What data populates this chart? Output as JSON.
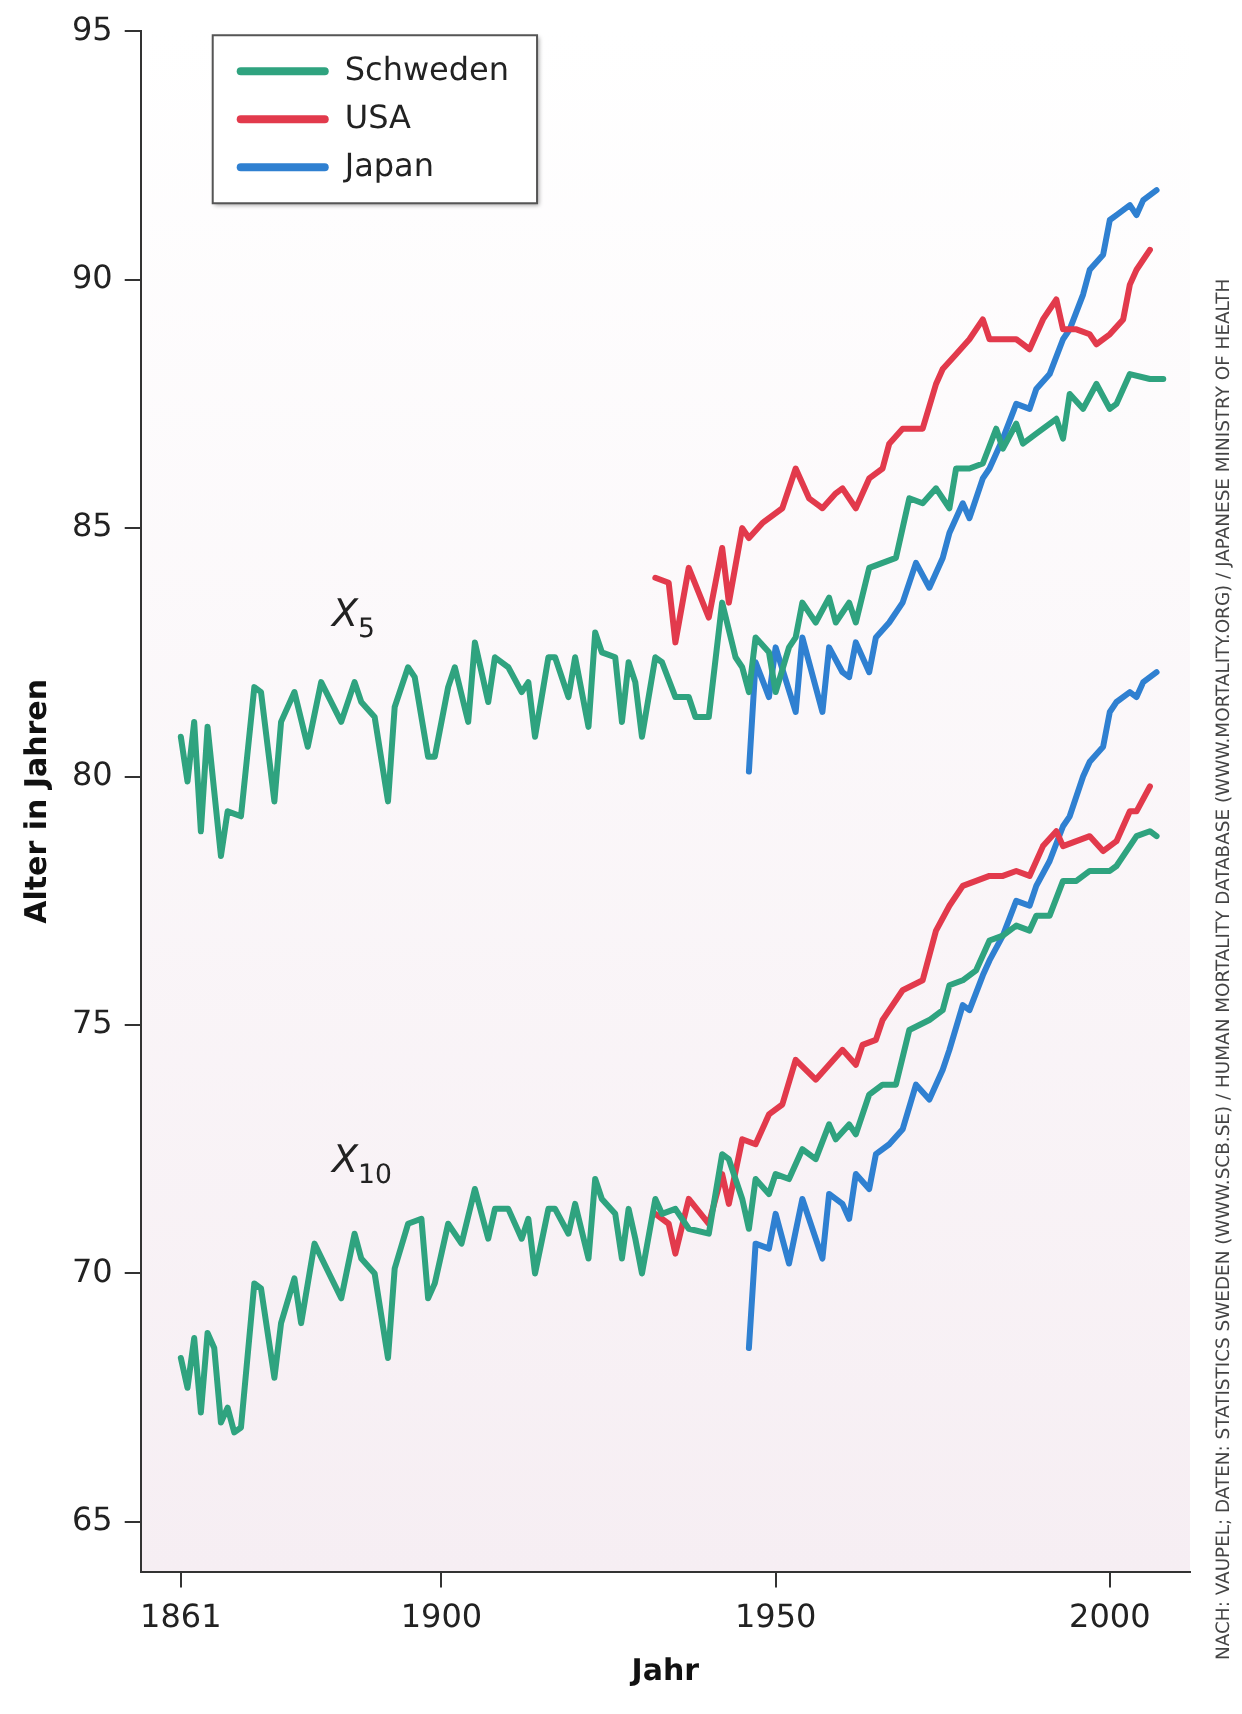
{
  "chart_data": {
    "type": "line",
    "xlabel": "Jahr",
    "ylabel": "Alter in Jahren",
    "xlim": [
      1855,
      2012
    ],
    "xticks": [
      1861,
      1900,
      1950,
      2000
    ],
    "ylim": [
      64,
      95
    ],
    "yticks": [
      65,
      70,
      75,
      80,
      85,
      90,
      95
    ],
    "grid": false,
    "legend": "top left",
    "marker": "none",
    "line_style": "solid",
    "annotations": [
      "X$_{5}$",
      "X$_{10}$",
      "NACH: VAUPEL; DATEN: STATISTICS SWEDEN (WWW.SCB.SE) / HUMAN MORTALITY DATABASE (WWW.MORTALITY.ORG) / JAPANESE MINISTRY OF HEALTH"
    ],
    "series": [
      {
        "name": "Schweden",
        "color": "#2fa37f",
        "x": [
          1861,
          1862,
          1863,
          1864,
          1865,
          1867,
          1868,
          1870,
          1872,
          1873,
          1875,
          1876,
          1878,
          1880,
          1882,
          1885,
          1887,
          1888,
          1890,
          1892,
          1893,
          1895,
          1896,
          1898,
          1899,
          1901,
          1902,
          1904,
          1905,
          1907,
          1908,
          1910,
          1912,
          1913,
          1914,
          1916,
          1917,
          1919,
          1920,
          1922,
          1923,
          1924,
          1926,
          1927,
          1928,
          1929,
          1930,
          1932,
          1933,
          1935,
          1937,
          1938,
          1940,
          1942,
          1944,
          1945,
          1946,
          1947,
          1949,
          1950,
          1952,
          1953,
          1954,
          1956,
          1958,
          1959,
          1961,
          1962,
          1964,
          1966,
          1968,
          1970,
          1972,
          1974,
          1976,
          1977,
          1979,
          1981,
          1983,
          1984,
          1986,
          1987,
          1989,
          1992,
          1993,
          1994,
          1996,
          1998,
          2000,
          2001,
          2003,
          2006,
          2008
        ],
        "values": [
          80.8,
          79.9,
          81.1,
          78.9,
          81.0,
          78.4,
          79.3,
          79.2,
          81.8,
          81.7,
          79.5,
          81.1,
          81.7,
          80.6,
          81.9,
          81.1,
          81.9,
          81.5,
          81.2,
          79.5,
          81.4,
          82.2,
          82.0,
          80.4,
          80.4,
          81.8,
          82.2,
          81.1,
          82.7,
          81.5,
          82.4,
          82.2,
          81.7,
          81.9,
          80.8,
          82.4,
          82.4,
          81.6,
          82.4,
          81.0,
          82.9,
          82.5,
          82.4,
          81.1,
          82.3,
          81.9,
          80.8,
          82.4,
          82.3,
          81.6,
          81.6,
          81.2,
          81.2,
          83.5,
          82.4,
          82.2,
          81.7,
          82.8,
          82.5,
          81.7,
          82.6,
          82.8,
          83.5,
          83.1,
          83.6,
          83.1,
          83.5,
          83.1,
          84.2,
          84.3,
          84.4,
          85.6,
          85.5,
          85.8,
          85.4,
          86.2,
          86.2,
          86.3,
          87.0,
          86.6,
          87.1,
          86.7,
          86.9,
          87.2,
          86.8,
          87.7,
          87.4,
          87.9,
          87.4,
          87.5,
          88.1,
          88.0,
          88.0
        ]
      },
      {
        "name": "USA",
        "color": "#e23a4c",
        "x": [
          1932,
          1934,
          1935,
          1937,
          1940,
          1942,
          1943,
          1945,
          1946,
          1948,
          1951,
          1953,
          1955,
          1957,
          1959,
          1960,
          1962,
          1964,
          1966,
          1967,
          1969,
          1972,
          1974,
          1975,
          1977,
          1979,
          1981,
          1982,
          1984,
          1986,
          1988,
          1990,
          1992,
          1993,
          1995,
          1997,
          1998,
          2000,
          2002,
          2003,
          2004,
          2006
        ],
        "values": [
          84.0,
          83.9,
          82.7,
          84.2,
          83.2,
          84.6,
          83.5,
          85.0,
          84.8,
          85.1,
          85.4,
          86.2,
          85.6,
          85.4,
          85.7,
          85.8,
          85.4,
          86.0,
          86.2,
          86.7,
          87.0,
          87.0,
          87.9,
          88.2,
          88.5,
          88.8,
          89.2,
          88.8,
          88.8,
          88.8,
          88.6,
          89.2,
          89.6,
          89.0,
          89.0,
          88.9,
          88.7,
          88.9,
          89.2,
          89.9,
          90.2,
          90.6
        ]
      },
      {
        "name": "Japan",
        "color": "#2f80d1",
        "x": [
          1946,
          1947,
          1949,
          1950,
          1953,
          1954,
          1957,
          1958,
          1960,
          1961,
          1962,
          1964,
          1965,
          1967,
          1969,
          1971,
          1973,
          1975,
          1976,
          1978,
          1979,
          1981,
          1982,
          1984,
          1986,
          1988,
          1989,
          1991,
          1993,
          1994,
          1996,
          1997,
          1999,
          2000,
          2001,
          2003,
          2004,
          2005,
          2007
        ],
        "values": [
          80.1,
          82.3,
          81.6,
          82.6,
          81.3,
          82.8,
          81.3,
          82.6,
          82.1,
          82.0,
          82.7,
          82.1,
          82.8,
          83.1,
          83.5,
          84.3,
          83.8,
          84.4,
          84.9,
          85.5,
          85.2,
          86.0,
          86.2,
          86.8,
          87.5,
          87.4,
          87.8,
          88.1,
          88.8,
          89.0,
          89.7,
          90.2,
          90.5,
          91.2,
          91.3,
          91.5,
          91.3,
          91.6,
          91.8
        ]
      },
      {
        "color": "#2fa37f",
        "x": [
          1861,
          1862,
          1863,
          1864,
          1865,
          1866,
          1867,
          1868,
          1869,
          1870,
          1872,
          1873,
          1875,
          1876,
          1878,
          1879,
          1881,
          1885,
          1887,
          1888,
          1890,
          1892,
          1893,
          1895,
          1897,
          1898,
          1899,
          1901,
          1903,
          1905,
          1907,
          1908,
          1910,
          1912,
          1913,
          1914,
          1916,
          1917,
          1919,
          1920,
          1922,
          1923,
          1924,
          1926,
          1927,
          1928,
          1929,
          1930,
          1932,
          1933,
          1935,
          1937,
          1940,
          1942,
          1943,
          1945,
          1946,
          1947,
          1949,
          1950,
          1952,
          1954,
          1956,
          1958,
          1959,
          1961,
          1962,
          1964,
          1966,
          1968,
          1970,
          1973,
          1975,
          1976,
          1978,
          1980,
          1982,
          1984,
          1986,
          1988,
          1989,
          1991,
          1993,
          1995,
          1997,
          1998,
          2000,
          2001,
          2004,
          2006,
          2007
        ],
        "values": [
          68.3,
          67.7,
          68.7,
          67.2,
          68.8,
          68.5,
          67.0,
          67.3,
          66.8,
          66.9,
          69.8,
          69.7,
          67.9,
          69.0,
          69.9,
          69.0,
          70.6,
          69.5,
          70.8,
          70.3,
          70.0,
          68.3,
          70.1,
          71.0,
          71.1,
          69.5,
          69.8,
          71.0,
          70.6,
          71.7,
          70.7,
          71.3,
          71.3,
          70.7,
          71.1,
          70.0,
          71.3,
          71.3,
          70.8,
          71.4,
          70.3,
          71.9,
          71.5,
          71.2,
          70.3,
          71.3,
          70.7,
          70.0,
          71.5,
          71.2,
          71.3,
          70.9,
          70.8,
          72.4,
          72.3,
          71.5,
          70.9,
          71.9,
          71.6,
          72.0,
          71.9,
          72.5,
          72.3,
          73.0,
          72.7,
          73.0,
          72.8,
          73.6,
          73.8,
          73.8,
          74.9,
          75.1,
          75.3,
          75.8,
          75.9,
          76.1,
          76.7,
          76.8,
          77.0,
          76.9,
          77.2,
          77.2,
          77.9,
          77.9,
          78.1,
          78.1,
          78.1,
          78.2,
          78.8,
          78.9,
          78.8
        ]
      },
      {
        "color": "#e23a4c",
        "x": [
          1932,
          1934,
          1935,
          1937,
          1940,
          1942,
          1943,
          1945,
          1947,
          1949,
          1951,
          1953,
          1956,
          1958,
          1960,
          1962,
          1963,
          1965,
          1966,
          1969,
          1972,
          1974,
          1976,
          1978,
          1980,
          1982,
          1984,
          1986,
          1988,
          1990,
          1992,
          1993,
          1995,
          1997,
          1999,
          2001,
          2003,
          2004,
          2006
        ],
        "values": [
          71.2,
          71.0,
          70.4,
          71.5,
          71.0,
          72.0,
          71.4,
          72.7,
          72.6,
          73.2,
          73.4,
          74.3,
          73.9,
          74.2,
          74.5,
          74.2,
          74.6,
          74.7,
          75.1,
          75.7,
          75.9,
          76.9,
          77.4,
          77.8,
          77.9,
          78.0,
          78.0,
          78.1,
          78.0,
          78.6,
          78.9,
          78.6,
          78.7,
          78.8,
          78.5,
          78.7,
          79.3,
          79.3,
          79.8
        ]
      },
      {
        "color": "#2f80d1",
        "x": [
          1946,
          1947,
          1949,
          1950,
          1952,
          1954,
          1957,
          1958,
          1960,
          1961,
          1962,
          1964,
          1965,
          1967,
          1969,
          1971,
          1973,
          1975,
          1976,
          1978,
          1979,
          1981,
          1982,
          1984,
          1986,
          1988,
          1989,
          1991,
          1993,
          1994,
          1996,
          1997,
          1999,
          2000,
          2001,
          2003,
          2004,
          2005,
          2007
        ],
        "values": [
          68.5,
          70.6,
          70.5,
          71.2,
          70.2,
          71.5,
          70.3,
          71.6,
          71.4,
          71.1,
          72.0,
          71.7,
          72.4,
          72.6,
          72.9,
          73.8,
          73.5,
          74.1,
          74.5,
          75.4,
          75.3,
          76.0,
          76.3,
          76.8,
          77.5,
          77.4,
          77.8,
          78.3,
          79.0,
          79.2,
          80.0,
          80.3,
          80.6,
          81.3,
          81.5,
          81.7,
          81.6,
          81.9,
          82.1
        ]
      }
    ]
  }
}
